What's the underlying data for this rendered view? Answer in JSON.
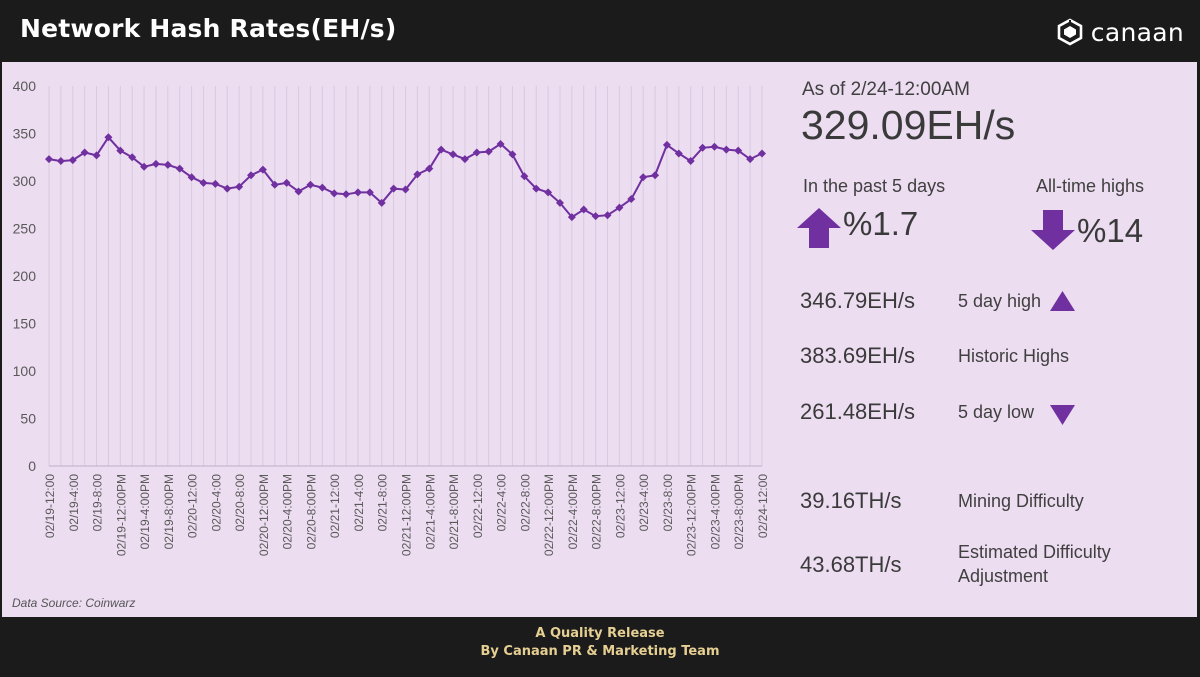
{
  "header": {
    "title": "Network Hash Rates(EH/s)",
    "brand": "canaan"
  },
  "stats": {
    "as_of": "As of 2/24-12:00AM",
    "current": "329.09EH/s",
    "past5_label": "In the past 5 days",
    "past5_value": "%1.7",
    "ath_label": "All-time highs",
    "ath_value": "%14",
    "high_value": "346.79EH/s",
    "high_label": "5 day high",
    "historic_value": "383.69EH/s",
    "historic_label": "Historic Highs",
    "low_value": "261.48EH/s",
    "low_label": "5 day low",
    "difficulty_value": "39.16TH/s",
    "difficulty_label": "Mining Difficulty",
    "est_value": "43.68TH/s",
    "est_label_1": "Estimated Difficulty",
    "est_label_2": "Adjustment"
  },
  "source": "Data Source: Coinwarz",
  "footer": {
    "line1": "A Quality Release",
    "line2": "By Canaan PR & Marketing Team"
  },
  "colors": {
    "accent": "#7030a0",
    "panel": "#ecddf1",
    "frame": "#1b1b1b",
    "footer_text": "#e6cf93"
  },
  "chart_data": {
    "type": "line",
    "ylim": [
      0,
      400
    ],
    "yticks": [
      0,
      50,
      100,
      150,
      200,
      250,
      300,
      350,
      400
    ],
    "grid": "vertical",
    "tick_labels": [
      "02/19-12:00",
      "02/19-4:00",
      "02/19-8:00",
      "02/19-12:00PM",
      "02/19-4:00PM",
      "02/19-8:00PM",
      "02/20-12:00",
      "02/20-4:00",
      "02/20-8:00",
      "02/20-12:00PM",
      "02/20-4:00PM",
      "02/20-8:00PM",
      "02/21-12:00",
      "02/21-4:00",
      "02/21-8:00",
      "02/21-12:00PM",
      "02/21-4:00PM",
      "02/21-8:00PM",
      "02/22-12:00",
      "02/22-4:00",
      "02/22-8:00",
      "02/22-12:00PM",
      "02/22-4:00PM",
      "02/22-8:00PM",
      "02/23-12:00",
      "02/23-4:00",
      "02/23-8:00",
      "02/23-12:00PM",
      "02/23-4:00PM",
      "02/23-8:00PM",
      "02/24-12:00"
    ],
    "series": [
      {
        "values": [
          323,
          321,
          322,
          330,
          327,
          346,
          332,
          325,
          315,
          318,
          317,
          313,
          304,
          298,
          297,
          292,
          294,
          306,
          312,
          296,
          298,
          289,
          296,
          293,
          287,
          286,
          288,
          288,
          277,
          292,
          291,
          307,
          313,
          333,
          328,
          323,
          330,
          331,
          339,
          328,
          305,
          292,
          288,
          277,
          262,
          270,
          263,
          264,
          272,
          281,
          304,
          306,
          338,
          329,
          321,
          335,
          336,
          333,
          332,
          323,
          329
        ]
      }
    ]
  }
}
